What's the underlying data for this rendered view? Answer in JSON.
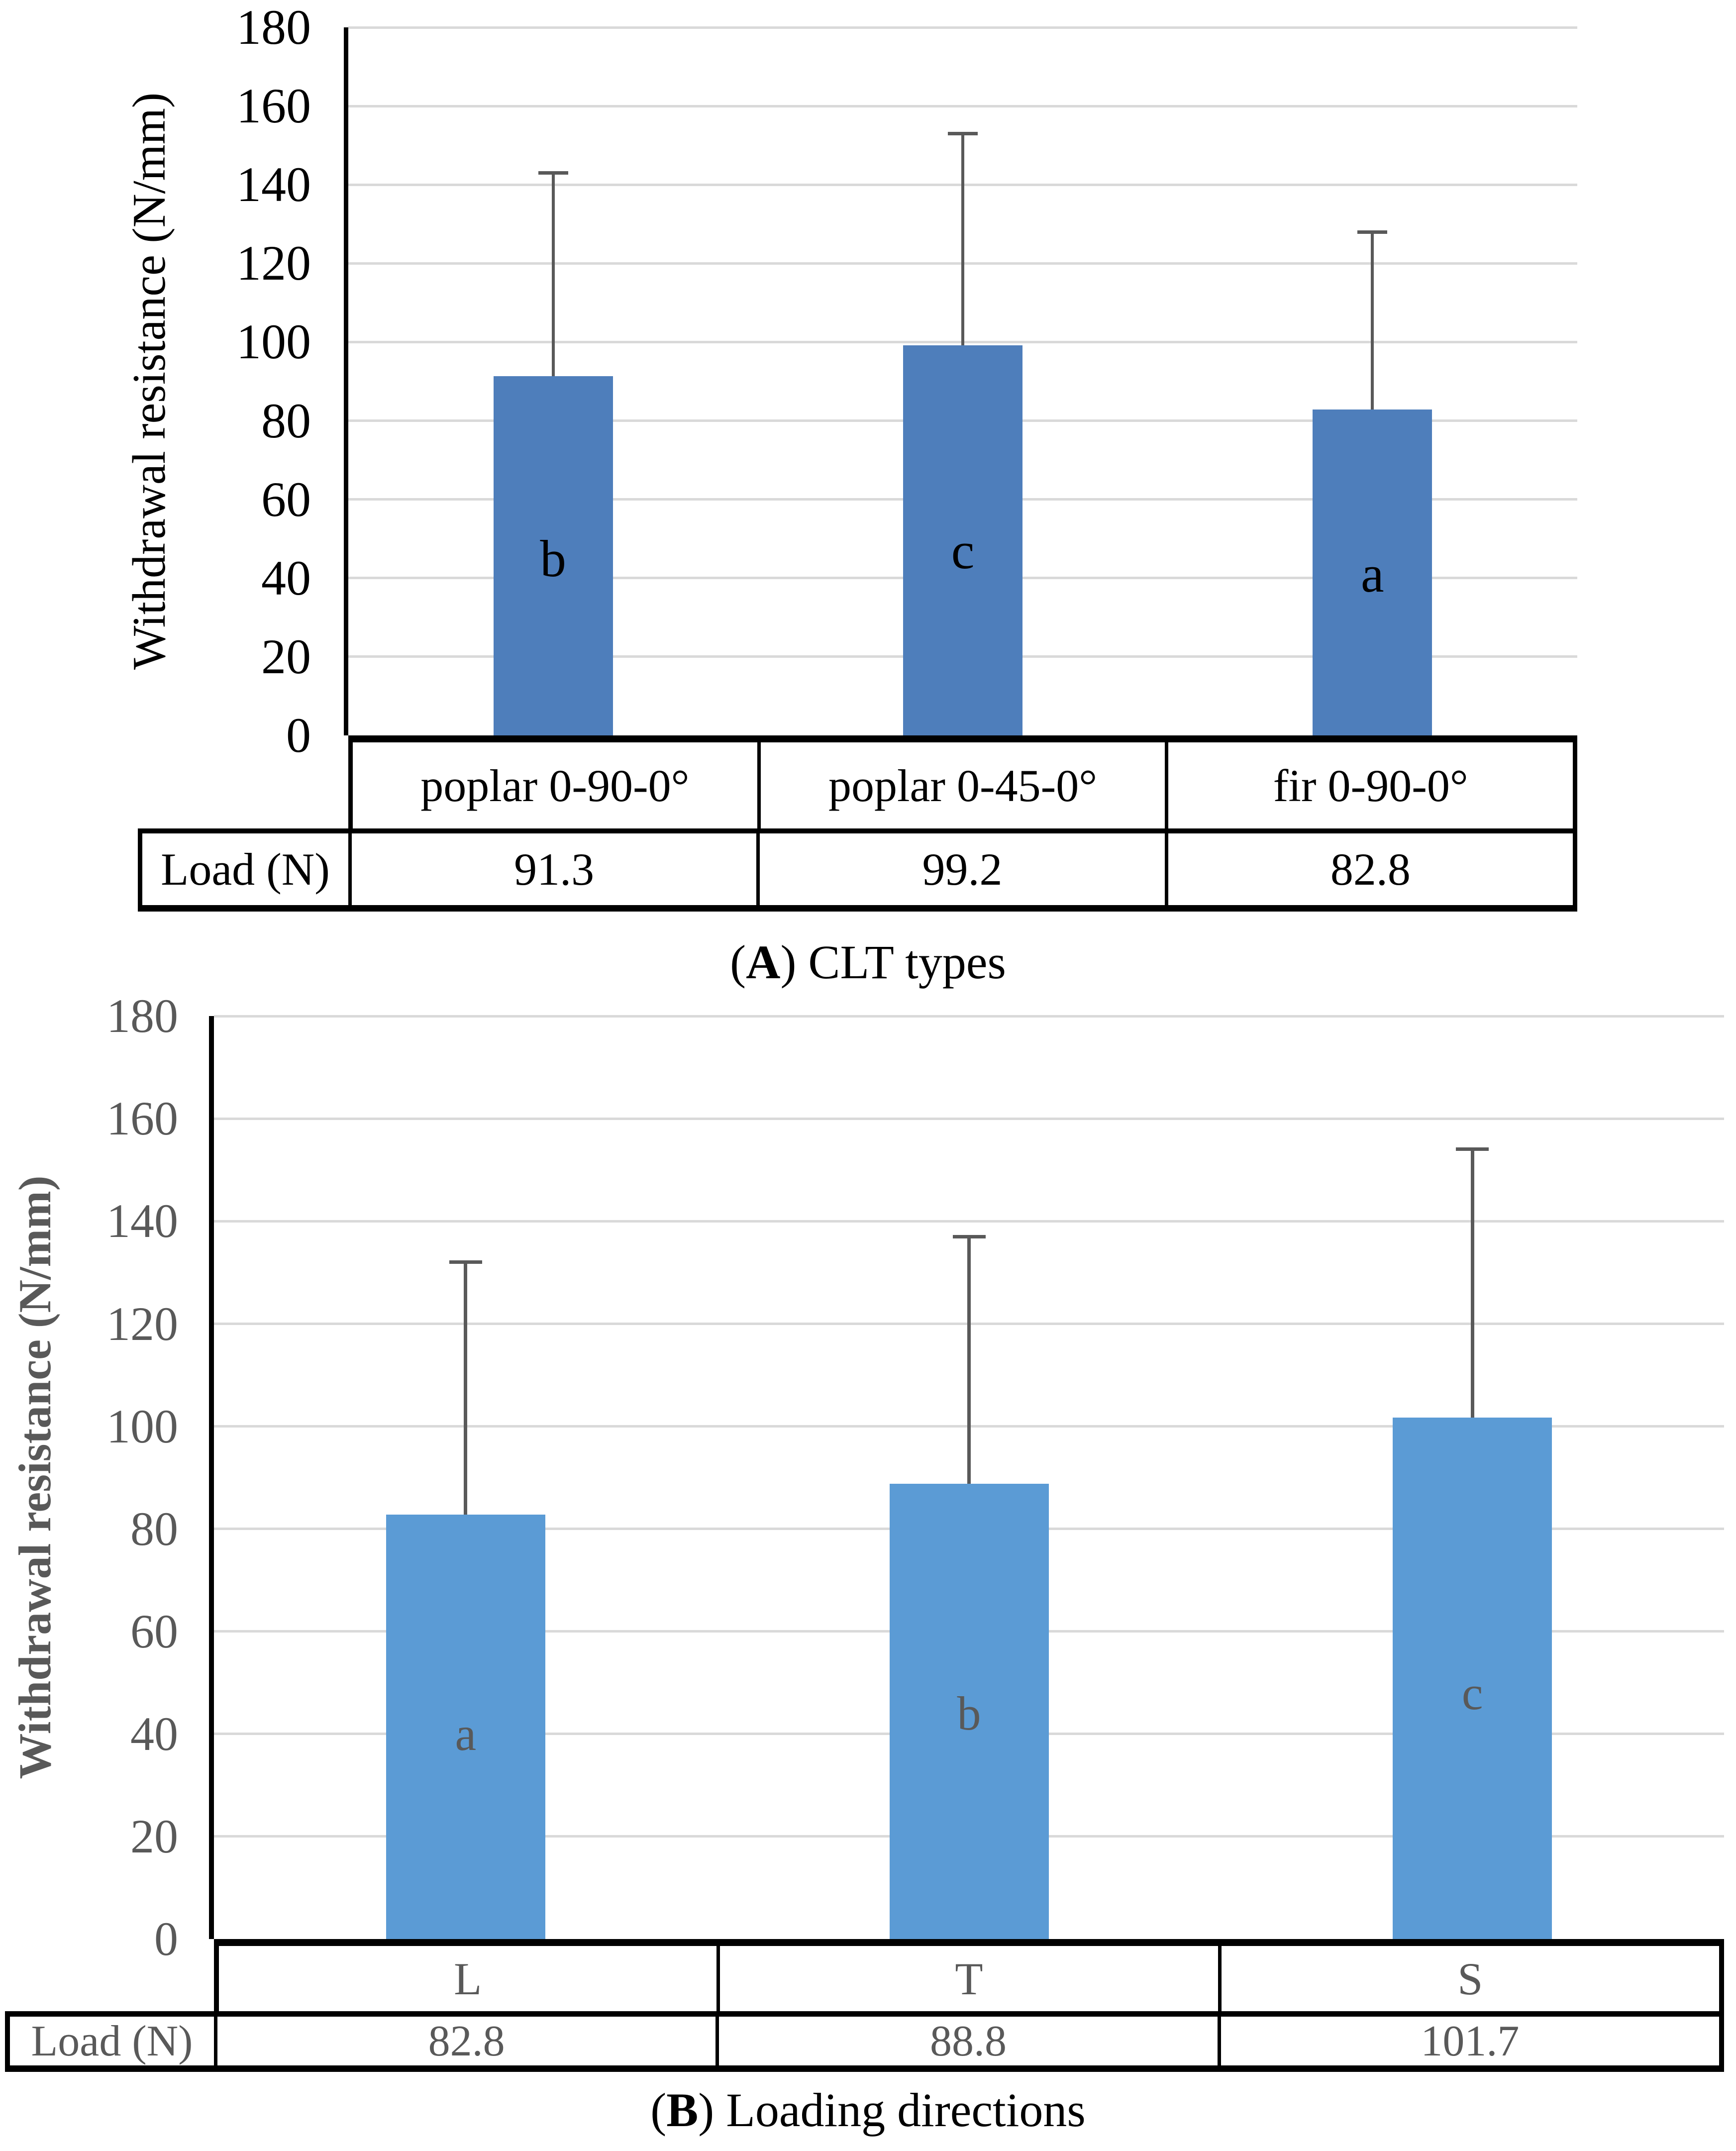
{
  "figure": {
    "background": "#ffffff"
  },
  "chart_data": [
    {
      "type": "bar",
      "panel": "A",
      "caption": {
        "open": "(",
        "letter": "A",
        "rest": ") CLT types"
      },
      "ylabel": "Withdrawal resistance (N/mm)",
      "row_header": "Load (N)",
      "categories": [
        "poplar 0-90-0°",
        "poplar 0-45-0°",
        "fir 0-90-0°"
      ],
      "values": [
        91.3,
        99.2,
        82.8
      ],
      "value_labels": [
        "91.3",
        "99.2",
        "82.8"
      ],
      "error_bar_tops": [
        143,
        153,
        128
      ],
      "bar_letters": [
        "b",
        "c",
        "a"
      ],
      "bar_letter_y": [
        45,
        47,
        41
      ],
      "yticks": [
        0,
        20,
        40,
        60,
        80,
        100,
        120,
        140,
        160,
        180
      ],
      "ylim": [
        0,
        180
      ],
      "grid": true,
      "legend": null,
      "bar_color": "#4e7ebb",
      "text_color": "#000000",
      "error_color": "#595959",
      "grid_color": "#d9d9d9",
      "axis_color": "#000000",
      "border_color": "#000000",
      "bold_text": false
    },
    {
      "type": "bar",
      "panel": "B",
      "caption": {
        "open": "(",
        "letter": "B",
        "rest": ") Loading directions"
      },
      "ylabel": "Withdrawal resistance (N/mm)",
      "row_header": "Load (N)",
      "categories": [
        "L",
        "T",
        "S"
      ],
      "values": [
        82.8,
        88.8,
        101.7
      ],
      "value_labels": [
        "82.8",
        "88.8",
        "101.7"
      ],
      "error_bar_tops": [
        132,
        137,
        154
      ],
      "bar_letters": [
        "a",
        "b",
        "c"
      ],
      "bar_letter_y": [
        40,
        44,
        48
      ],
      "yticks": [
        0,
        20,
        40,
        60,
        80,
        100,
        120,
        140,
        160,
        180
      ],
      "ylim": [
        0,
        180
      ],
      "grid": true,
      "legend": null,
      "bar_color": "#5b9bd5",
      "text_color": "#595959",
      "error_color": "#595959",
      "grid_color": "#d9d9d9",
      "axis_color": "#000000",
      "border_color": "#000000",
      "bold_text": true
    }
  ]
}
